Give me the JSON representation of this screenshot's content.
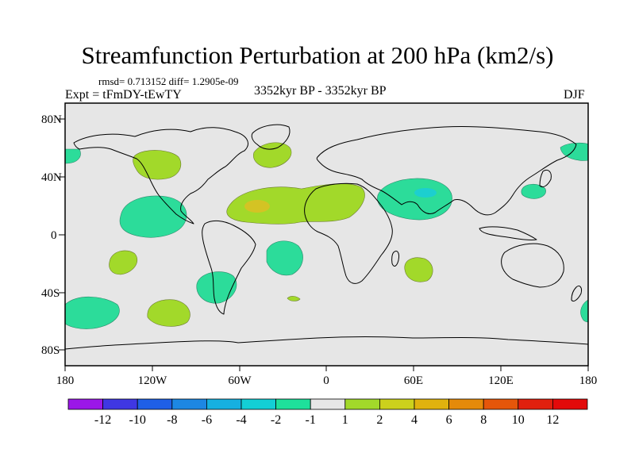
{
  "title": "Streamfunction Perturbation at 200 hPa (km2/s)",
  "stats": "rmsd= 0.713152 diff= 1.2905e-09",
  "experiment": "Expt = tFmDY-tEwTY",
  "period": "3352kyr BP - 3352kyr BP",
  "season": "DJF",
  "map": {
    "lat_labels": [
      "80N",
      "40N",
      "0",
      "40S",
      "80S"
    ],
    "lon_labels": [
      "180",
      "120W",
      "60W",
      "0",
      "60E",
      "120E",
      "180"
    ],
    "colors": {
      "ocean": "#e6e6e6",
      "coast": "#000000",
      "pos_1_2": "#a2d92a",
      "pos_2_4": "#d4c324",
      "neg_1_2": "#2cdc9a",
      "neg_2_4": "#1ccfcf"
    }
  },
  "colorbar": {
    "labels": [
      "-12",
      "-10",
      "-8",
      "-6",
      "-4",
      "-2",
      "-1",
      "1",
      "2",
      "4",
      "6",
      "8",
      "10",
      "12"
    ],
    "colors": [
      "#9b17e8",
      "#3f37e3",
      "#1f5fe6",
      "#1d87e3",
      "#16b0e0",
      "#13cfd5",
      "#1ee09b",
      "#e6e6e6",
      "#a2d92a",
      "#ccd11c",
      "#e0b20e",
      "#e58a0a",
      "#e5560a",
      "#e0200e",
      "#e30a0a"
    ]
  }
}
